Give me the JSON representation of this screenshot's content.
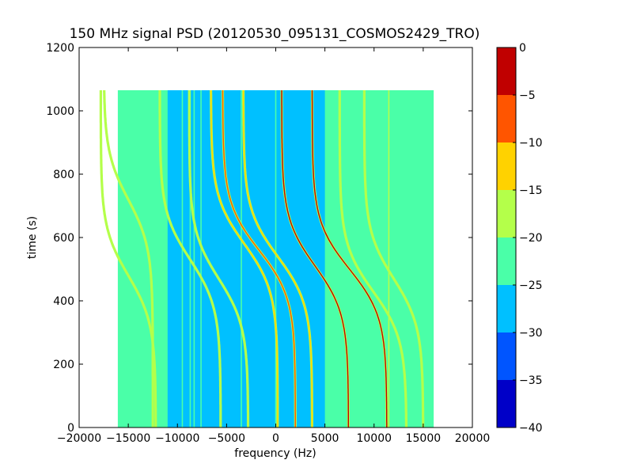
{
  "chart_data": {
    "type": "heatmap",
    "title": "150 MHz signal PSD (20120530_095131_COSMOS2429_TRO)",
    "xlabel": "frequency (Hz)",
    "ylabel": "time (s)",
    "xlim": [
      -20000,
      20000
    ],
    "ylim": [
      0,
      1200
    ],
    "xticks": [
      -20000,
      -15000,
      -10000,
      -5000,
      0,
      5000,
      10000,
      15000,
      20000
    ],
    "yticks": [
      0,
      200,
      400,
      600,
      800,
      1000,
      1200
    ],
    "xtick_labels": [
      "−20000",
      "−15000",
      "−10000",
      "−5000",
      "0",
      "5000",
      "10000",
      "15000",
      "20000"
    ],
    "ytick_labels": [
      "0",
      "200",
      "400",
      "600",
      "800",
      "1000",
      "1200"
    ],
    "data_extent": {
      "x": [
        -16000,
        16000
      ],
      "y": [
        0,
        1065
      ]
    },
    "background": {
      "edges_level": -22.5,
      "center_level": -27.5,
      "center_x_range": [
        -11000,
        5000
      ]
    },
    "vertical_lines": [
      {
        "x": -16000,
        "level": -22
      },
      {
        "x": -12500,
        "level": -22
      },
      {
        "x": -11700,
        "level": -23
      },
      {
        "x": -9500,
        "level": -22
      },
      {
        "x": -8700,
        "level": -23
      },
      {
        "x": -8300,
        "level": -22
      },
      {
        "x": -7600,
        "level": -23
      },
      {
        "x": -3500,
        "level": -22
      },
      {
        "x": 0,
        "level": -22
      },
      {
        "x": 9200,
        "level": -22
      },
      {
        "x": 11500,
        "level": -18
      },
      {
        "x": 16000,
        "level": -22
      }
    ],
    "doppler_traces": [
      {
        "x_center": -15000,
        "t_center": 720,
        "amplitude": 2500,
        "width": 150,
        "t_range": [
          0,
          1065
        ],
        "peak_level": -19
      },
      {
        "x_center": -15000,
        "t_center": 480,
        "amplitude": 2800,
        "width": 150,
        "t_range": [
          0,
          1065
        ],
        "peak_level": -20
      },
      {
        "x_center": -8700,
        "t_center": 530,
        "amplitude": 3100,
        "width": 150,
        "t_range": [
          0,
          1065
        ],
        "peak_level": -19
      },
      {
        "x_center": -5800,
        "t_center": 470,
        "amplitude": 3000,
        "width": 150,
        "t_range": [
          0,
          1065
        ],
        "peak_level": -19
      },
      {
        "x_center": -3200,
        "t_center": 580,
        "amplitude": 3400,
        "width": 150,
        "t_range": [
          0,
          1065
        ],
        "peak_level": -12
      },
      {
        "x_center": -1700,
        "t_center": 560,
        "amplitude": 3700,
        "width": 150,
        "t_range": [
          0,
          1065
        ],
        "peak_level": -7
      },
      {
        "x_center": 200,
        "t_center": 540,
        "amplitude": 3500,
        "width": 150,
        "t_range": [
          0,
          1065
        ],
        "peak_level": -11
      },
      {
        "x_center": 4000,
        "t_center": 510,
        "amplitude": 3400,
        "width": 150,
        "t_range": [
          0,
          1065
        ],
        "peak_level": -3
      },
      {
        "x_center": 7500,
        "t_center": 500,
        "amplitude": 3800,
        "width": 150,
        "t_range": [
          0,
          1065
        ],
        "peak_level": -4
      },
      {
        "x_center": 9900,
        "t_center": 430,
        "amplitude": 3400,
        "width": 150,
        "t_range": [
          0,
          1065
        ],
        "peak_level": -16
      },
      {
        "x_center": 12000,
        "t_center": 470,
        "amplitude": 3000,
        "width": 150,
        "t_range": [
          0,
          1065
        ],
        "peak_level": -19
      }
    ],
    "colorbar": {
      "ticks": [
        0,
        -5,
        -10,
        -15,
        -20,
        -25,
        -30,
        -35,
        -40
      ],
      "tick_labels": [
        "0",
        "−5",
        "−10",
        "−15",
        "−20",
        "−25",
        "−30",
        "−35",
        "−40"
      ],
      "levels": [
        {
          "from": -5,
          "to": 0,
          "color": "#c00000"
        },
        {
          "from": -10,
          "to": -5,
          "color": "#ff5500"
        },
        {
          "from": -15,
          "to": -10,
          "color": "#ffd200"
        },
        {
          "from": -20,
          "to": -15,
          "color": "#b4ff4a"
        },
        {
          "from": -25,
          "to": -20,
          "color": "#4affa8"
        },
        {
          "from": -30,
          "to": -25,
          "color": "#00c0ff"
        },
        {
          "from": -35,
          "to": -30,
          "color": "#0055ff"
        },
        {
          "from": -40,
          "to": -35,
          "color": "#0000c8"
        }
      ]
    }
  }
}
